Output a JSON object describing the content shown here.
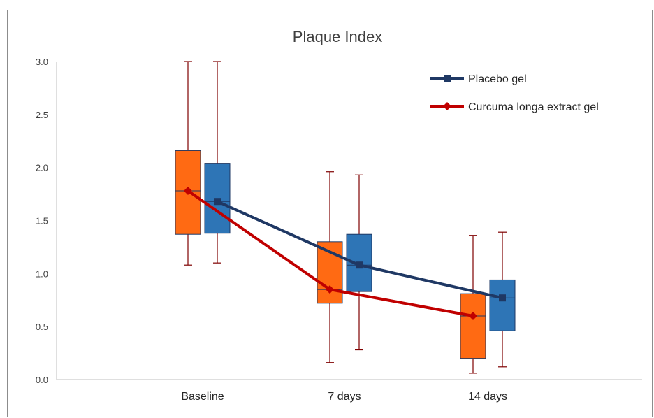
{
  "chart_data": {
    "type": "box",
    "title": "Plaque Index",
    "xlabel": "",
    "ylabel": "",
    "ylim": [
      0,
      3
    ],
    "yticks": [
      "0.0",
      "0.5",
      "1.0",
      "1.5",
      "2.0",
      "2.5",
      "3.0"
    ],
    "categories": [
      "Baseline",
      "7 days",
      "14 days"
    ],
    "legend_position": "top-right",
    "series": [
      {
        "name": "Curcuma longa extract gel",
        "box_color": "#ff6a13",
        "line_color": "#c00000",
        "marker": "diamond",
        "min": [
          1.08,
          0.16,
          0.06
        ],
        "q1": [
          1.37,
          0.72,
          0.2
        ],
        "median": [
          1.78,
          0.85,
          0.6
        ],
        "q3": [
          2.16,
          1.3,
          0.81
        ],
        "max": [
          3.0,
          1.96,
          1.36
        ],
        "mean": [
          1.78,
          0.85,
          0.6
        ]
      },
      {
        "name": "Placebo gel",
        "box_color": "#2e75b6",
        "line_color": "#1f3864",
        "marker": "square",
        "min": [
          1.1,
          0.28,
          0.12
        ],
        "q1": [
          1.38,
          0.83,
          0.46
        ],
        "median": [
          1.68,
          1.08,
          0.77
        ],
        "q3": [
          2.04,
          1.37,
          0.94
        ],
        "max": [
          3.0,
          1.93,
          1.39
        ],
        "mean": [
          1.68,
          1.08,
          0.77
        ]
      }
    ]
  }
}
